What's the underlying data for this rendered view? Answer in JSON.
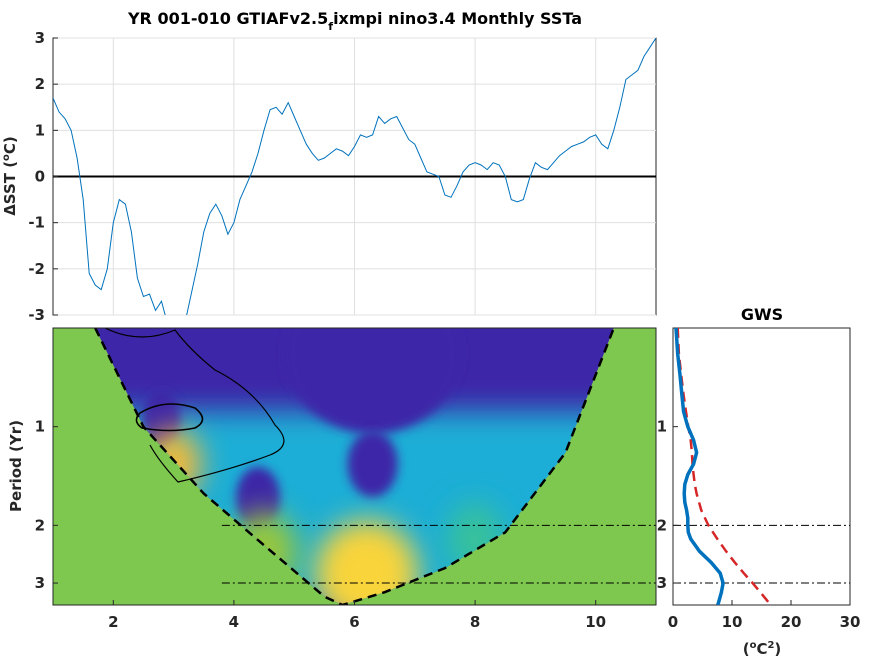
{
  "colors": {
    "series": "#0072BD",
    "zero_line": "#000000",
    "wavelet_low": "#3e26a8",
    "wavelet_high": "#f9d43a",
    "outside_cone": "#7ec84f",
    "gws_line": "#0072BD",
    "gws_significance": "#d62728"
  },
  "chart_data": [
    {
      "type": "line",
      "title": "YR 001-010 GTIAFv2.5",
      "title_subscript": "f",
      "title_suffix": "ixmpi nino3.4 Monthly SSTa",
      "ylabel_prefix": "ΔSST (",
      "ylabel_super": "o",
      "ylabel_suffix": "C)",
      "xlim": [
        1,
        11
      ],
      "ylim": [
        -3,
        3
      ],
      "x_ticks": [
        "2",
        "4",
        "6",
        "8",
        "10"
      ],
      "y_ticks": [
        "3",
        "2",
        "1",
        "0",
        "-1",
        "-2",
        "-3"
      ],
      "grid": true,
      "reference_line_y": 0,
      "series": [
        {
          "x": [
            1.0,
            1.1,
            1.2,
            1.3,
            1.4,
            1.5,
            1.6,
            1.7,
            1.8,
            1.9,
            2.0,
            2.1,
            2.2,
            2.3,
            2.4,
            2.5,
            2.6,
            2.7,
            2.8,
            2.9,
            3.0,
            3.1,
            3.2,
            3.3,
            3.4,
            3.5,
            3.6,
            3.7,
            3.8,
            3.9,
            4.0,
            4.1,
            4.2,
            4.3,
            4.4,
            4.5,
            4.6,
            4.7,
            4.8,
            4.9,
            5.0,
            5.1,
            5.2,
            5.3,
            5.4,
            5.5,
            5.6,
            5.7,
            5.8,
            5.9,
            6.0,
            6.1,
            6.2,
            6.3,
            6.4,
            6.5,
            6.6,
            6.7,
            6.8,
            6.9,
            7.0,
            7.1,
            7.2,
            7.3,
            7.4,
            7.5,
            7.6,
            7.7,
            7.8,
            7.9,
            8.0,
            8.1,
            8.2,
            8.3,
            8.4,
            8.5,
            8.6,
            8.7,
            8.8,
            8.9,
            9.0,
            9.1,
            9.2,
            9.3,
            9.4,
            9.5,
            9.6,
            9.7,
            9.8,
            9.9,
            10.0,
            10.1,
            10.2,
            10.3,
            10.4,
            10.5,
            10.6,
            10.7,
            10.8,
            10.9,
            11.0
          ],
          "y": [
            1.7,
            1.4,
            1.25,
            1.0,
            0.4,
            -0.5,
            -2.1,
            -2.35,
            -2.45,
            -2.0,
            -1.0,
            -0.5,
            -0.6,
            -1.2,
            -2.2,
            -2.6,
            -2.55,
            -2.9,
            -2.7,
            -3.2,
            -3.4,
            -3.5,
            -3.1,
            -2.5,
            -1.9,
            -1.2,
            -0.8,
            -0.6,
            -0.85,
            -1.25,
            -1.0,
            -0.5,
            -0.2,
            0.1,
            0.5,
            1.0,
            1.45,
            1.5,
            1.35,
            1.6,
            1.3,
            1.0,
            0.7,
            0.5,
            0.35,
            0.4,
            0.5,
            0.6,
            0.55,
            0.45,
            0.65,
            0.9,
            0.85,
            0.9,
            1.3,
            1.15,
            1.25,
            1.3,
            1.05,
            0.8,
            0.7,
            0.4,
            0.1,
            0.05,
            0.0,
            -0.4,
            -0.45,
            -0.2,
            0.1,
            0.25,
            0.3,
            0.25,
            0.15,
            0.3,
            0.25,
            0.0,
            -0.5,
            -0.55,
            -0.5,
            -0.05,
            0.3,
            0.2,
            0.15,
            0.3,
            0.45,
            0.55,
            0.65,
            0.7,
            0.75,
            0.85,
            0.9,
            0.7,
            0.6,
            1.0,
            1.5,
            2.1,
            2.2,
            2.3,
            2.6,
            2.8,
            3.0
          ]
        }
      ]
    },
    {
      "type": "heatmap",
      "ylabel": "Period (Yr)",
      "xlim": [
        1,
        11
      ],
      "x_ticks": [
        "2",
        "4",
        "6",
        "8",
        "10"
      ],
      "y_scale": "log",
      "y_range": [
        0.5,
        3.5
      ],
      "y_ticks": [
        "1",
        "2",
        "3"
      ],
      "y_reverse": true,
      "period_reference_lines": [
        2,
        3
      ],
      "cone_of_influence_x": [
        1.7,
        2.5,
        3.5,
        4.5,
        5.5,
        5.8,
        6.5,
        7.5,
        8.5,
        9.5,
        10.3
      ],
      "cone_of_influence_period": [
        0.5,
        1.0,
        1.6,
        2.3,
        3.3,
        3.5,
        3.2,
        2.7,
        2.1,
        1.2,
        0.5
      ],
      "power_regions": [
        {
          "x": 6.3,
          "period": 0.6,
          "level": 0.0,
          "span": 2.6
        },
        {
          "x": 2.8,
          "period": 0.95,
          "level": 0.05,
          "span": 0.3
        },
        {
          "x": 6.3,
          "period": 1.3,
          "level": 0.05,
          "span": 0.5
        },
        {
          "x": 4.4,
          "period": 1.65,
          "level": 0.05,
          "span": 0.4
        },
        {
          "x": 3.0,
          "period": 1.3,
          "level": 0.9,
          "span": 0.6
        },
        {
          "x": 6.2,
          "period": 2.8,
          "level": 0.95,
          "span": 1.4
        },
        {
          "x": 4.5,
          "period": 2.4,
          "level": 0.75,
          "span": 0.8
        },
        {
          "x": 8.0,
          "period": 2.2,
          "level": 0.5,
          "span": 0.6
        }
      ]
    },
    {
      "type": "line",
      "title": "GWS",
      "xlabel_prefix": "(",
      "xlabel_super_a": "o",
      "xlabel_mid": "C",
      "xlabel_super_b": "2",
      "xlabel_suffix": ")",
      "xlim": [
        0,
        30
      ],
      "x_ticks": [
        "0",
        "10",
        "20",
        "30"
      ],
      "y_ticks": [
        "1",
        "2",
        "3"
      ],
      "y_scale": "log",
      "series": [
        {
          "name": "",
          "period": [
            0.5,
            0.6,
            0.7,
            0.8,
            0.9,
            1.0,
            1.1,
            1.2,
            1.3,
            1.4,
            1.5,
            1.6,
            1.7,
            1.8,
            1.9,
            2.0,
            2.1,
            2.2,
            2.4,
            2.6,
            2.8,
            3.0,
            3.2,
            3.4,
            3.5
          ],
          "power": [
            0.5,
            0.8,
            1.2,
            1.5,
            1.8,
            2.5,
            3.5,
            4.0,
            3.5,
            2.5,
            2.0,
            1.9,
            2.0,
            2.3,
            2.5,
            2.5,
            2.6,
            3.0,
            4.5,
            6.5,
            8.0,
            8.5,
            8.2,
            7.8,
            7.6
          ]
        },
        {
          "name": "",
          "style": "dashed",
          "period": [
            0.5,
            0.6,
            0.7,
            0.8,
            0.9,
            1.0,
            1.1,
            1.2,
            1.3,
            1.4,
            1.5,
            1.6,
            1.8,
            2.0,
            2.2,
            2.4,
            2.6,
            2.8,
            3.0,
            3.2,
            3.4,
            3.5
          ],
          "power": [
            0.8,
            1.0,
            1.4,
            1.8,
            2.2,
            2.6,
            3.0,
            3.2,
            3.3,
            3.5,
            3.7,
            4.0,
            4.8,
            6.0,
            7.5,
            9.0,
            10.5,
            12.0,
            13.5,
            14.8,
            16.0,
            16.5
          ]
        }
      ]
    }
  ]
}
